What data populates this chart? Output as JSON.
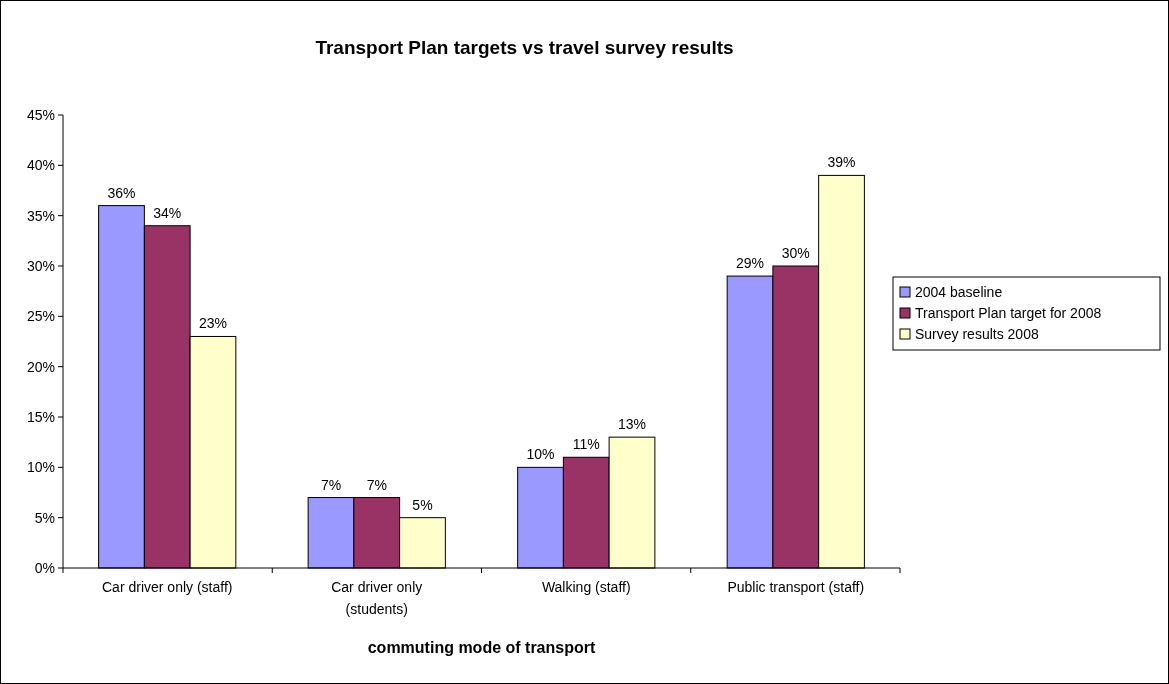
{
  "chart_data": {
    "type": "bar",
    "title": "Transport Plan targets vs travel survey results",
    "xlabel": "commuting mode of transport",
    "categories": [
      "Car driver only (staff)",
      "Car driver only (students)",
      "Walking (staff)",
      "Public transport (staff)"
    ],
    "series": [
      {
        "name": "2004 baseline",
        "color": "#9999ff",
        "values": [
          36,
          7,
          10,
          29
        ],
        "value_labels": [
          "36%",
          "7%",
          "10%",
          "29%"
        ]
      },
      {
        "name": "Transport Plan target for 2008",
        "color": "#993366",
        "values": [
          34,
          7,
          11,
          30
        ],
        "value_labels": [
          "34%",
          "7%",
          "11%",
          "30%"
        ]
      },
      {
        "name": "Survey results 2008",
        "color": "#ffffcc",
        "values": [
          23,
          5,
          13,
          39
        ],
        "value_labels": [
          "23%",
          "5%",
          "13%",
          "39%"
        ]
      }
    ],
    "ylim": [
      0,
      45
    ],
    "yticks": [
      {
        "value": 0,
        "label": "0%"
      },
      {
        "value": 5,
        "label": "5%"
      },
      {
        "value": 10,
        "label": "10%"
      },
      {
        "value": 15,
        "label": "15%"
      },
      {
        "value": 20,
        "label": "20%"
      },
      {
        "value": 25,
        "label": "25%"
      },
      {
        "value": 30,
        "label": "30%"
      },
      {
        "value": 35,
        "label": "35%"
      },
      {
        "value": 40,
        "label": "40%"
      },
      {
        "value": 45,
        "label": "45%"
      }
    ],
    "legend": "right",
    "grid": false
  }
}
